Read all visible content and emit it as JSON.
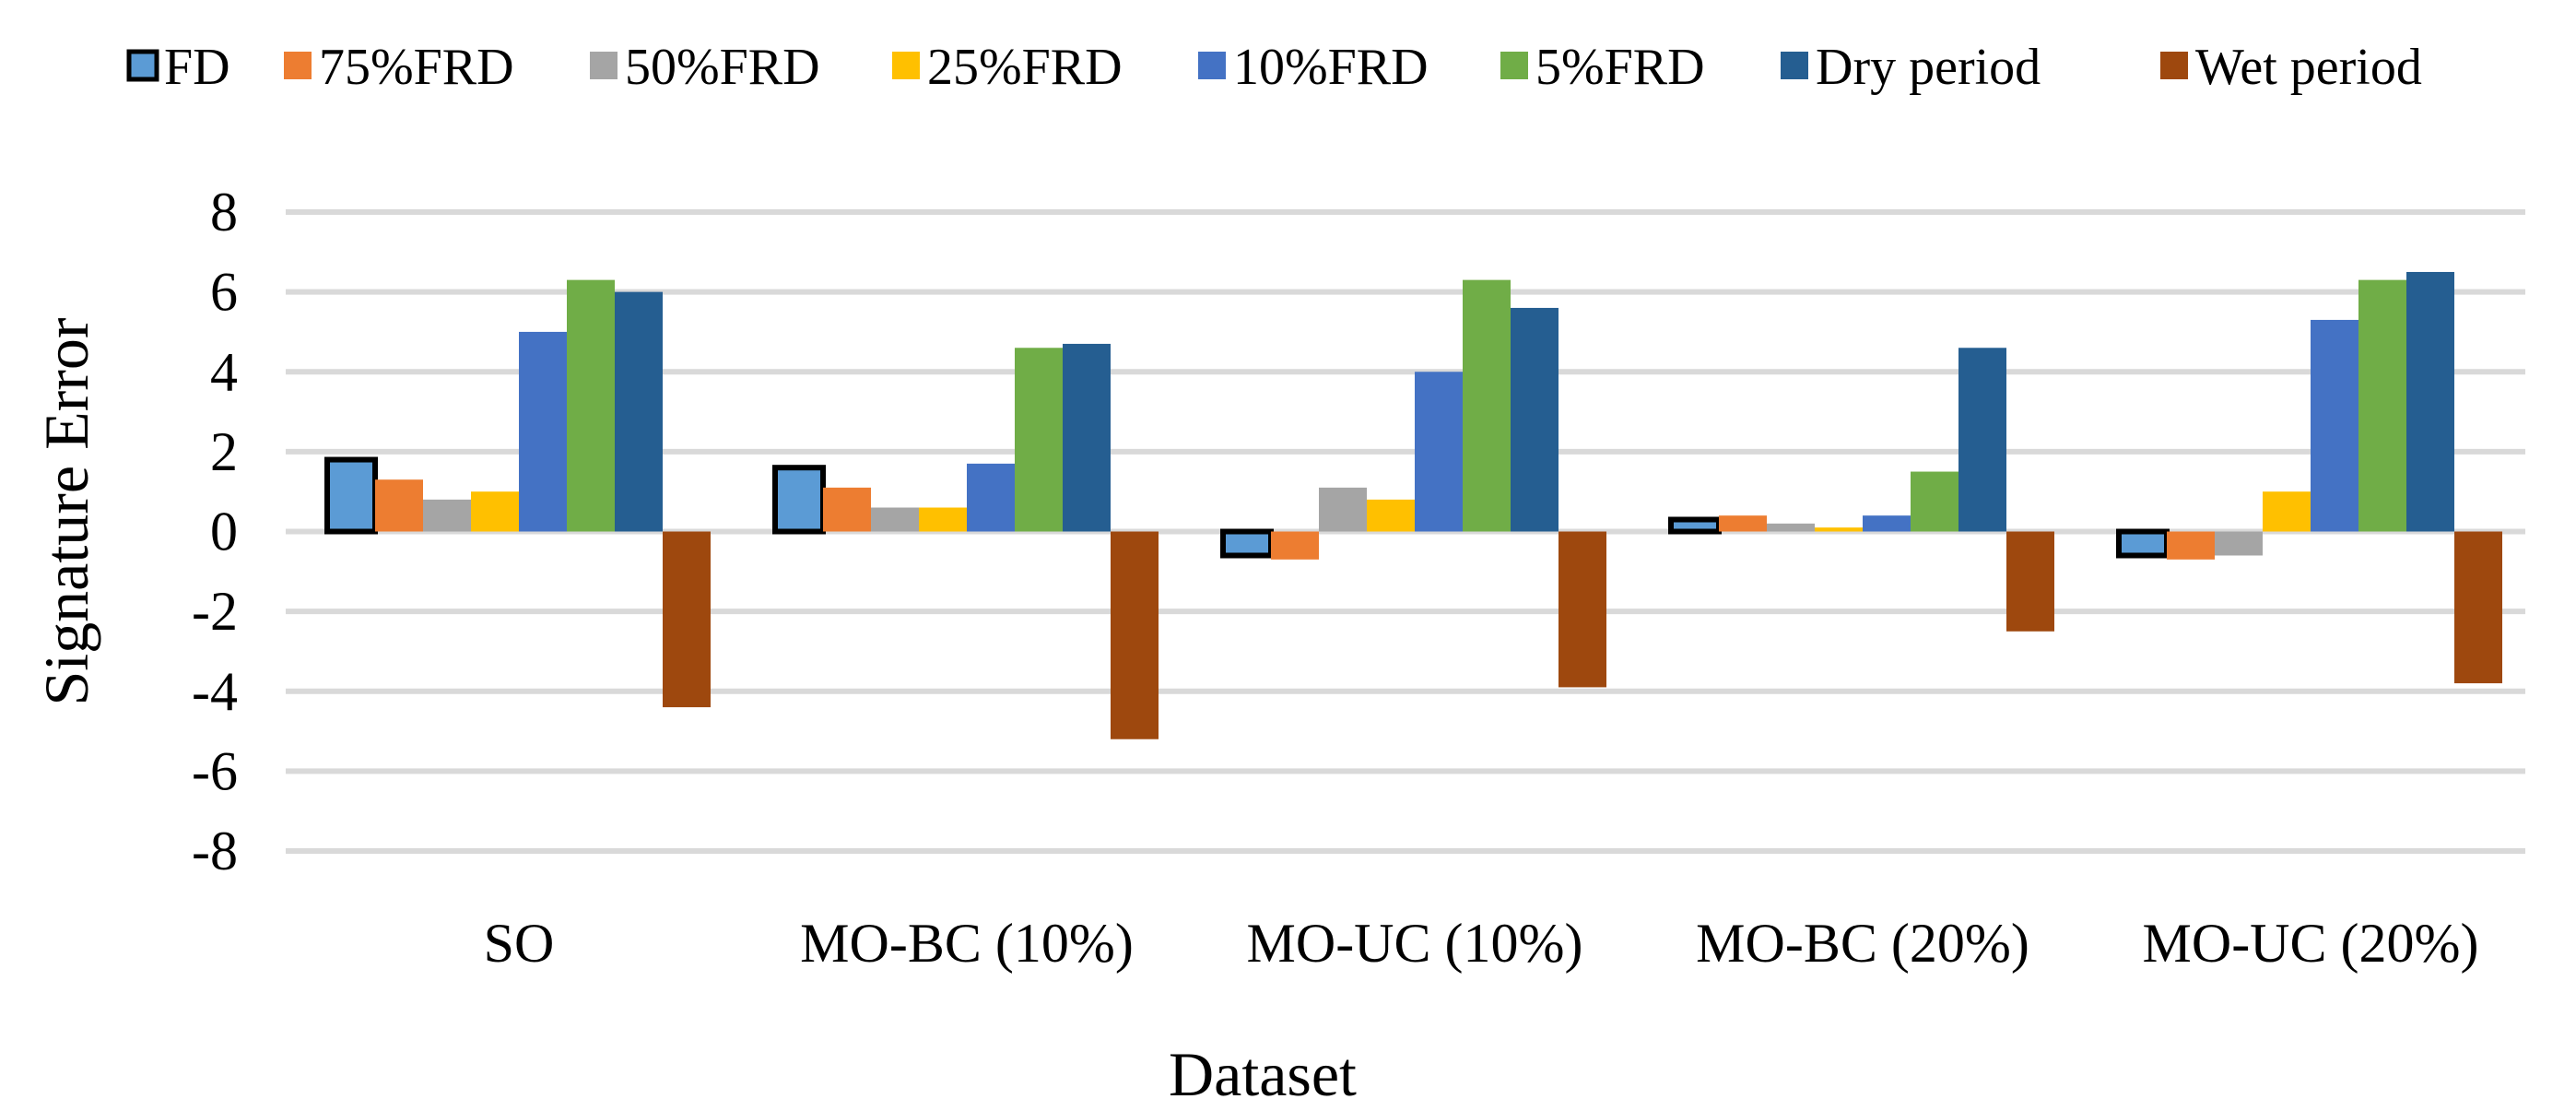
{
  "chart_data": {
    "type": "bar",
    "title": "",
    "xlabel": "Dataset",
    "ylabel": "Signature Error",
    "ylim": [
      -8,
      8
    ],
    "yticks": [
      8,
      6,
      4,
      2,
      0,
      -2,
      -4,
      -6,
      -8
    ],
    "legend_position": "top",
    "categories": [
      "SO",
      "MO-BC (10%)",
      "MO-UC (10%)",
      "MO-BC (20%)",
      "MO-UC (20%)"
    ],
    "series": [
      {
        "name": "FD",
        "color": "#5b9bd5",
        "outlined": true,
        "values": [
          1.8,
          1.6,
          -0.6,
          0.3,
          -0.6
        ]
      },
      {
        "name": "75%FRD",
        "color": "#ed7d31",
        "values": [
          1.3,
          1.1,
          -0.7,
          0.4,
          -0.7
        ]
      },
      {
        "name": "50%FRD",
        "color": "#a5a5a5",
        "values": [
          0.8,
          0.6,
          1.1,
          0.2,
          -0.6
        ]
      },
      {
        "name": "25%FRD",
        "color": "#ffc000",
        "values": [
          1.0,
          0.6,
          0.8,
          0.1,
          1.0
        ]
      },
      {
        "name": "10%FRD",
        "color": "#4472c4",
        "values": [
          5.0,
          1.7,
          4.0,
          0.4,
          5.3
        ]
      },
      {
        "name": "5%FRD",
        "color": "#70ad47",
        "values": [
          6.3,
          4.6,
          6.3,
          1.5,
          6.3
        ]
      },
      {
        "name": "Dry period",
        "color": "#255e91",
        "values": [
          6.0,
          4.7,
          5.6,
          4.6,
          6.5
        ]
      },
      {
        "name": "Wet period",
        "color": "#9e480e",
        "values": [
          -4.4,
          -5.2,
          -3.9,
          -2.5,
          -3.8
        ]
      }
    ]
  }
}
